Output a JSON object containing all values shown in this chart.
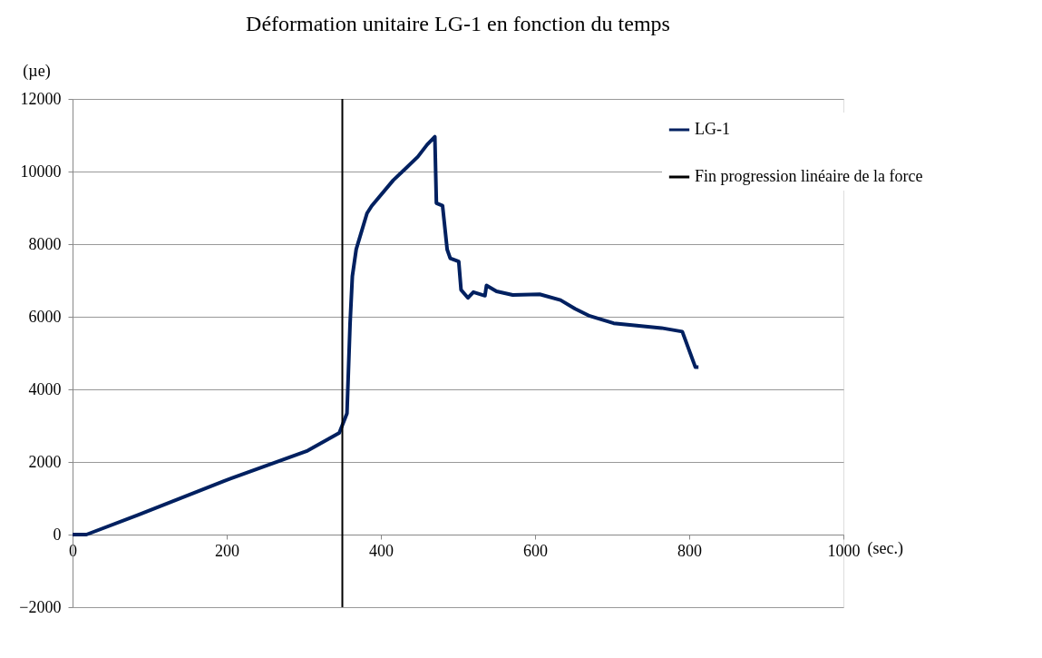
{
  "chart_data": {
    "type": "line",
    "title": "Déformation unitaire LG-1 en fonction du temps",
    "xlabel": "(sec.)",
    "ylabel": "(µe)",
    "xlim": [
      0,
      1000
    ],
    "xticks": [
      0,
      200,
      400,
      600,
      800,
      1000
    ],
    "ylim": [
      -2000,
      12000
    ],
    "yticks": [
      -2000,
      0,
      2000,
      4000,
      6000,
      8000,
      10000,
      12000
    ],
    "grid": "y",
    "legend": "top right",
    "x": [
      0,
      18,
      85,
      197,
      305,
      346,
      356,
      360,
      363,
      368,
      382,
      388,
      416,
      432,
      448,
      460,
      470,
      472,
      480,
      486,
      490,
      501,
      504,
      513,
      520,
      535,
      537,
      550,
      571,
      606,
      633,
      652,
      671,
      702,
      729,
      764,
      791,
      808,
      812
    ],
    "series": [
      {
        "name": "LG-1",
        "color": "#002060",
        "values": [
          0,
          0,
          540,
          1480,
          2310,
          2800,
          3340,
          5800,
          7120,
          7860,
          8850,
          9050,
          9760,
          10080,
          10410,
          10740,
          10960,
          9130,
          9060,
          7850,
          7610,
          7520,
          6740,
          6520,
          6680,
          6580,
          6860,
          6700,
          6600,
          6620,
          6460,
          6220,
          6020,
          5820,
          5760,
          5690,
          5590,
          4610,
          4610
        ]
      }
    ],
    "ref_lines": [
      {
        "axis": "x",
        "value": 350,
        "label": "Fin progression linéaire de la force",
        "color": "#000000"
      }
    ]
  }
}
